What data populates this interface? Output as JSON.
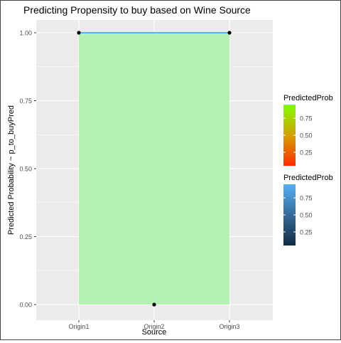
{
  "chart_data": {
    "type": "area",
    "title": "Predicting Propensity to buy based on Wine Source",
    "xlabel": "Source",
    "ylabel": "Predicted Probability ~ p_to_buyPred",
    "categories": [
      "Origin1",
      "Origin2",
      "Origin3"
    ],
    "ylim": [
      0,
      1
    ],
    "yticks": [
      "0.00",
      "0.25",
      "0.50",
      "0.75",
      "1.00"
    ],
    "grid": true,
    "area": {
      "values": [
        1.0,
        1.0,
        1.0
      ],
      "fill": "#b3f2b3"
    },
    "line": {
      "values": [
        1.0,
        1.0,
        1.0
      ],
      "color": "#56b1f7"
    },
    "points": {
      "values": [
        1.0,
        0.0,
        1.0
      ],
      "color": "#000000"
    },
    "legends": [
      {
        "title": "PredictedProb",
        "labels": [
          "0.75",
          "0.50",
          "0.25"
        ],
        "gradient": [
          "#ff2a00",
          "#d4a000",
          "#7fff00"
        ]
      },
      {
        "title": "PredictedProb",
        "labels": [
          "0.75",
          "0.50",
          "0.25"
        ],
        "gradient": [
          "#132b43",
          "#336a98",
          "#56b1f7"
        ]
      }
    ],
    "legend_position": "right",
    "colors": {
      "panel": "#ebebeb",
      "grid": "#ffffff"
    }
  }
}
